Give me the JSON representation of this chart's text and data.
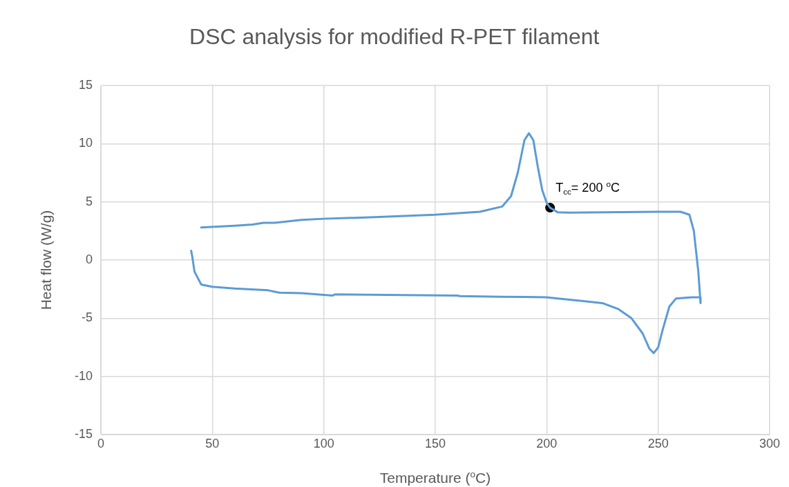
{
  "chart_data": {
    "type": "line",
    "title": "DSC analysis for modified R-PET filament",
    "xlabel": "Temperature ($^{o}$C)",
    "ylabel": "Heat flow (W/g)",
    "series": [
      {
        "color": "#5b9bd5",
        "marker": "none",
        "x": [
          45,
          60,
          68,
          73,
          78,
          90,
          100,
          125,
          150,
          170,
          180,
          184,
          187,
          190,
          192,
          194,
          196,
          198,
          200,
          201.5,
          205,
          210,
          250,
          260,
          264,
          266,
          268,
          269,
          269,
          265,
          258,
          255,
          252,
          250,
          248,
          246,
          243,
          238,
          232,
          225,
          215,
          205,
          200,
          180,
          161,
          160,
          105,
          104,
          90,
          80,
          75,
          60,
          50,
          45,
          42,
          41,
          40.5
        ],
        "values": [
          2.8,
          2.95,
          3.05,
          3.2,
          3.2,
          3.45,
          3.55,
          3.7,
          3.9,
          4.15,
          4.6,
          5.5,
          7.5,
          10.3,
          10.9,
          10.3,
          8,
          6,
          4.9,
          4.5,
          4.1,
          4.08,
          4.15,
          4.15,
          3.9,
          2.5,
          -1,
          -3.7,
          -3.2,
          -3.2,
          -3.3,
          -4,
          -6,
          -7.5,
          -8,
          -7.6,
          -6.3,
          -5,
          -4.2,
          -3.7,
          -3.5,
          -3.3,
          -3.2,
          -3.15,
          -3.1,
          -3.05,
          -2.95,
          -3.05,
          -2.85,
          -2.8,
          -2.6,
          -2.45,
          -2.3,
          -2.1,
          -1,
          0.3,
          0.8
        ]
      },
      {
        "type": "scatter",
        "color": "#000000",
        "marker": "circle",
        "x": [
          201.5
        ],
        "values": [
          4.5
        ]
      }
    ],
    "annotations": [
      {
        "text": "T$_{cc}$= 200 $^{o}$C",
        "x": 201.5,
        "y": 4.5
      }
    ],
    "xlim": [
      0,
      300
    ],
    "xticks": [
      0,
      50,
      100,
      150,
      200,
      250,
      300
    ],
    "ylim": [
      -15,
      15
    ],
    "yticks": [
      -15,
      -10,
      -5,
      0,
      5,
      10,
      15
    ],
    "grid": true,
    "legend": false
  }
}
